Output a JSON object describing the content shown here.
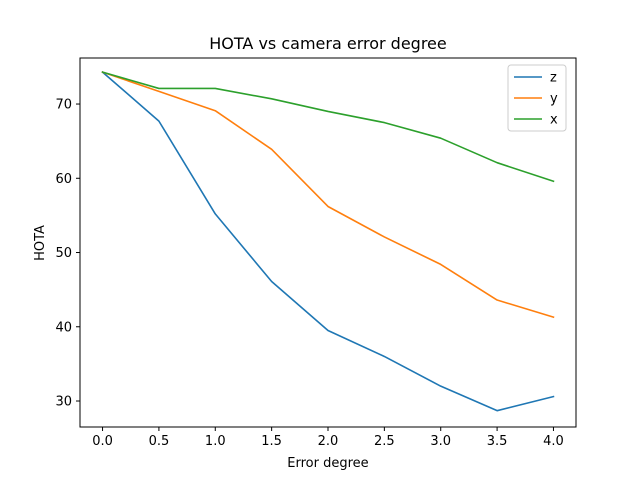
{
  "chart_data": {
    "type": "line",
    "title": "HOTA vs camera error degree",
    "xlabel": "Error degree",
    "ylabel": "HOTA",
    "x": [
      0.0,
      0.5,
      1.0,
      1.5,
      2.0,
      2.5,
      3.0,
      3.5,
      4.0
    ],
    "xlim": [
      -0.2,
      4.2
    ],
    "ylim": [
      26.5,
      76.2
    ],
    "xticks": [
      "0.0",
      "0.5",
      "1.0",
      "1.5",
      "2.0",
      "2.5",
      "3.0",
      "3.5",
      "4.0"
    ],
    "yticks": [
      "30",
      "40",
      "50",
      "60",
      "70"
    ],
    "grid": false,
    "legend_position": "top-right",
    "series": [
      {
        "name": "z",
        "color": "#1f77b4",
        "values": [
          74.3,
          67.7,
          55.2,
          46.1,
          39.5,
          36.0,
          32.0,
          28.7,
          30.6
        ]
      },
      {
        "name": "y",
        "color": "#ff7f0e",
        "values": [
          74.3,
          71.7,
          69.1,
          63.9,
          56.2,
          52.1,
          48.4,
          43.6,
          41.3
        ]
      },
      {
        "name": "x",
        "color": "#2ca02c",
        "values": [
          74.3,
          72.1,
          72.1,
          70.7,
          69.0,
          67.5,
          65.4,
          62.1,
          59.6
        ]
      }
    ]
  }
}
